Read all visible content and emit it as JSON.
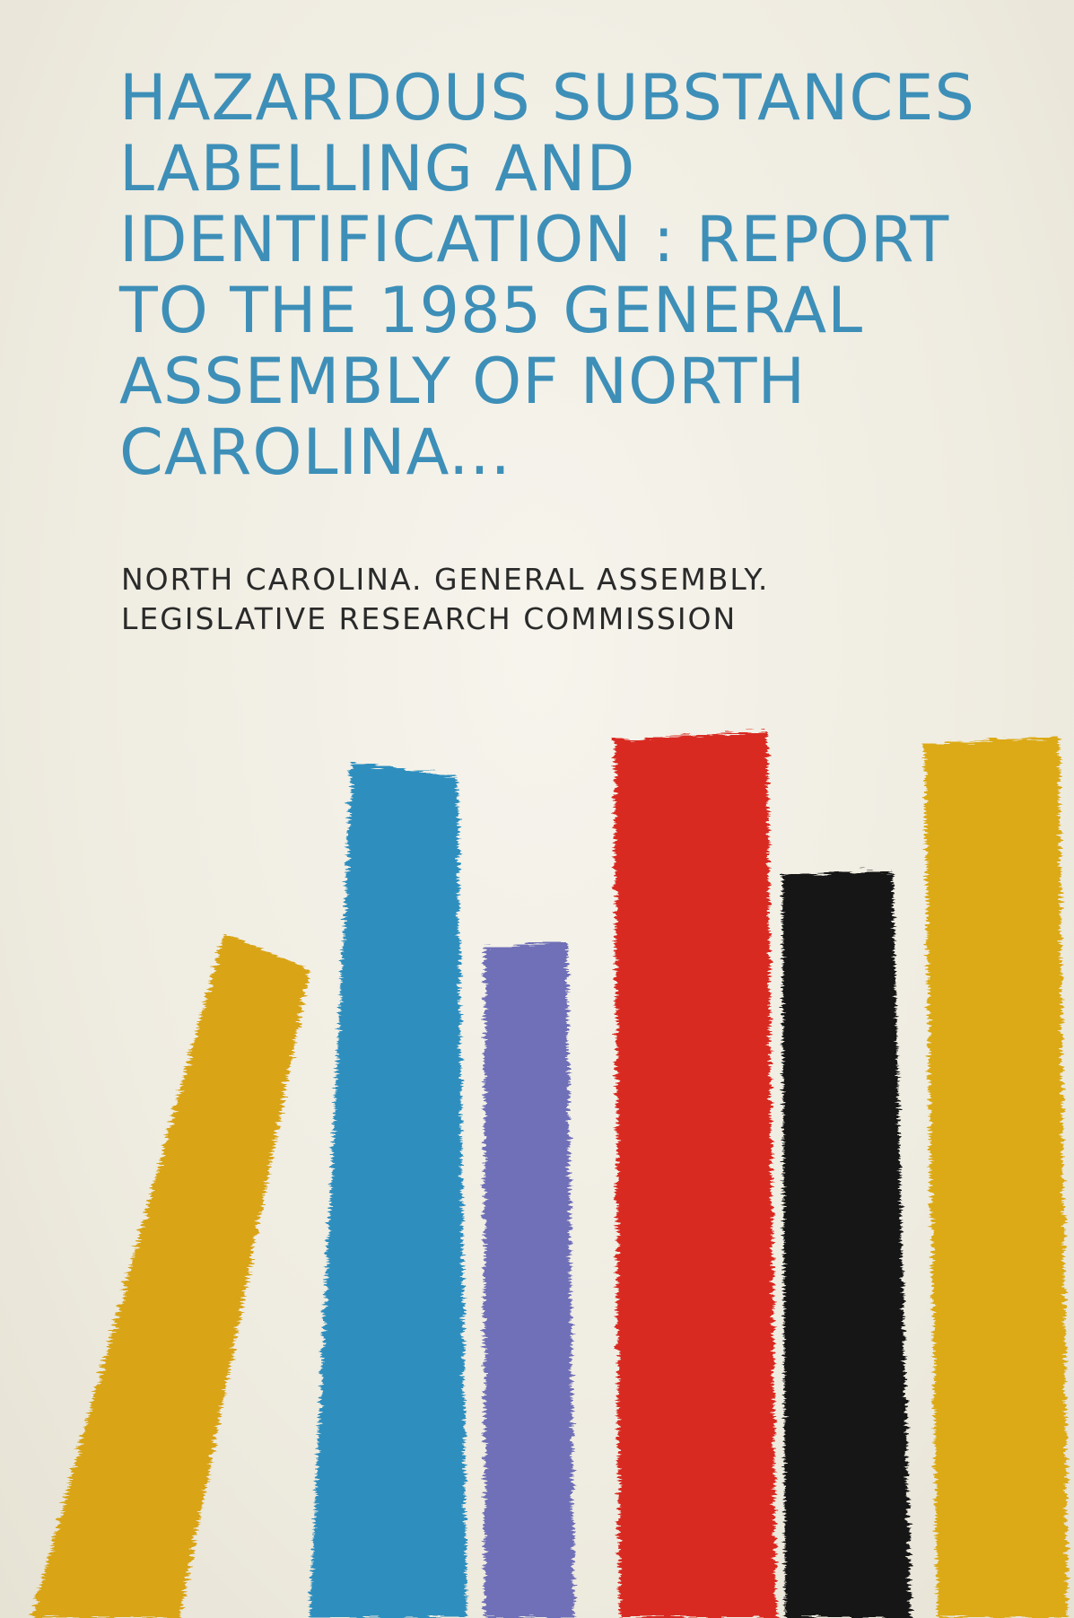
{
  "cover": {
    "title": "Hazardous Substances Labelling and Identification : Report to the 1985 General Assembly of North Carolina...",
    "author_lines": [
      "North Carolina. General Assembly.",
      "Legislative Research Commission"
    ]
  },
  "colors": {
    "title": "#3d8fb8",
    "author": "#2a2a2a",
    "background": "#f2efe6",
    "paint_strokes": [
      "#d9a419",
      "#2f8fbf",
      "#6f70b8",
      "#d92c22",
      "#151515",
      "#dcaa16"
    ]
  }
}
